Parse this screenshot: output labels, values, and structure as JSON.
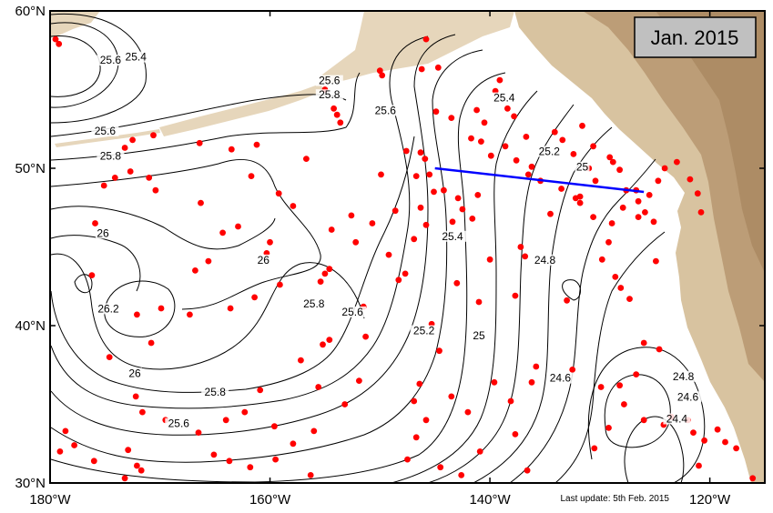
{
  "title": "Jan. 2015",
  "last_update": "Last update: 5th Feb. 2015",
  "axes": {
    "x_ticks": [
      {
        "value": -180,
        "label": "180°W"
      },
      {
        "value": -160,
        "label": "160°W"
      },
      {
        "value": -140,
        "label": "140°W"
      },
      {
        "value": -120,
        "label": "120°W"
      }
    ],
    "y_ticks": [
      {
        "value": 30,
        "label": "30°N"
      },
      {
        "value": 40,
        "label": "40°N"
      },
      {
        "value": 50,
        "label": "50°N"
      },
      {
        "value": 60,
        "label": "60°N"
      }
    ],
    "lon_range": [
      -180,
      -115
    ],
    "lat_range": [
      30,
      60
    ]
  },
  "colors": {
    "land": "#d8c3a0",
    "land_dark": "#b79770",
    "ocean": "#ffffff",
    "floats": "#ff0000",
    "section": "#0000ff",
    "contour": "#000000",
    "title_box": "#c0c0c0"
  },
  "contour_labels": [
    {
      "text": "25.6",
      "lon": -174.5,
      "lat": 56.7
    },
    {
      "text": "25.4",
      "lon": -172.2,
      "lat": 56.9
    },
    {
      "text": "25.6",
      "lon": -175.0,
      "lat": 52.2
    },
    {
      "text": "25.8",
      "lon": -174.5,
      "lat": 50.6
    },
    {
      "text": "25.6",
      "lon": -154.6,
      "lat": 55.4
    },
    {
      "text": "25.8",
      "lon": -154.6,
      "lat": 54.5
    },
    {
      "text": "25.6",
      "lon": -149.5,
      "lat": 53.5
    },
    {
      "text": "25.4",
      "lon": -138.7,
      "lat": 54.3
    },
    {
      "text": "25.2",
      "lon": -134.6,
      "lat": 50.9
    },
    {
      "text": "25",
      "lon": -131.6,
      "lat": 49.9
    },
    {
      "text": "26",
      "lon": -175.2,
      "lat": 45.7
    },
    {
      "text": "26",
      "lon": -160.6,
      "lat": 44.0
    },
    {
      "text": "26.2",
      "lon": -174.7,
      "lat": 40.9
    },
    {
      "text": "26",
      "lon": -172.3,
      "lat": 36.8
    },
    {
      "text": "25.8",
      "lon": -165.0,
      "lat": 35.6
    },
    {
      "text": "25.6",
      "lon": -168.3,
      "lat": 33.6
    },
    {
      "text": "25.8",
      "lon": -156.0,
      "lat": 41.2
    },
    {
      "text": "25.6",
      "lon": -152.5,
      "lat": 40.7
    },
    {
      "text": "25.4",
      "lon": -143.4,
      "lat": 45.5
    },
    {
      "text": "25.2",
      "lon": -146.0,
      "lat": 39.5
    },
    {
      "text": "25",
      "lon": -141.0,
      "lat": 39.2
    },
    {
      "text": "24.8",
      "lon": -135.0,
      "lat": 44.0
    },
    {
      "text": "24.6",
      "lon": -133.6,
      "lat": 36.5
    },
    {
      "text": "24.8",
      "lon": -122.4,
      "lat": 36.6
    },
    {
      "text": "24.6",
      "lon": -122.0,
      "lat": 35.3
    },
    {
      "text": "24.4",
      "lon": -123.0,
      "lat": 33.9
    }
  ],
  "section_line": {
    "start": {
      "lon": -145.0,
      "lat": 50.0
    },
    "end": {
      "lon": -126.0,
      "lat": 48.5
    }
  },
  "floats": [
    [
      -179.5,
      58.2
    ],
    [
      -179.2,
      57.9
    ],
    [
      -155.0,
      55.0
    ],
    [
      -154.2,
      53.8
    ],
    [
      -153.9,
      53.4
    ],
    [
      -153.6,
      52.9
    ],
    [
      -150.0,
      56.2
    ],
    [
      -149.8,
      55.9
    ],
    [
      -146.2,
      56.3
    ],
    [
      -145.8,
      58.2
    ],
    [
      -144.7,
      56.4
    ],
    [
      -144.9,
      53.6
    ],
    [
      -143.5,
      53.2
    ],
    [
      -141.2,
      53.7
    ],
    [
      -140.5,
      52.9
    ],
    [
      -139.5,
      54.9
    ],
    [
      -139.1,
      55.6
    ],
    [
      -138.4,
      53.8
    ],
    [
      -137.8,
      53.3
    ],
    [
      -141.7,
      51.9
    ],
    [
      -140.8,
      51.7
    ],
    [
      -139.9,
      50.8
    ],
    [
      -138.6,
      51.4
    ],
    [
      -137.6,
      50.5
    ],
    [
      -136.2,
      50.1
    ],
    [
      -133.4,
      51.8
    ],
    [
      -132.4,
      50.9
    ],
    [
      -131.0,
      50.0
    ],
    [
      -130.4,
      49.2
    ],
    [
      -129.1,
      50.7
    ],
    [
      -128.2,
      49.9
    ],
    [
      -127.6,
      48.6
    ],
    [
      -126.5,
      47.9
    ],
    [
      -125.9,
      47.2
    ],
    [
      -125.1,
      46.6
    ],
    [
      -124.9,
      44.1
    ],
    [
      -129.2,
      45.3
    ],
    [
      -129.8,
      44.2
    ],
    [
      -128.6,
      43.1
    ],
    [
      -128.1,
      42.4
    ],
    [
      -133.0,
      41.6
    ],
    [
      -127.3,
      41.7
    ],
    [
      -126.0,
      38.9
    ],
    [
      -124.6,
      38.5
    ],
    [
      -126.7,
      36.9
    ],
    [
      -128.2,
      36.2
    ],
    [
      -129.9,
      36.1
    ],
    [
      -132.5,
      37.2
    ],
    [
      -135.8,
      37.4
    ],
    [
      -136.2,
      36.4
    ],
    [
      -126.0,
      34.0
    ],
    [
      -124.2,
      33.7
    ],
    [
      -123.5,
      34.2
    ],
    [
      -122.0,
      34.0
    ],
    [
      -121.5,
      33.2
    ],
    [
      -120.5,
      32.7
    ],
    [
      -119.3,
      33.4
    ],
    [
      -118.6,
      32.6
    ],
    [
      -117.6,
      32.2
    ],
    [
      -116.1,
      30.3
    ],
    [
      -121.0,
      31.1
    ],
    [
      -127.8,
      35.0
    ],
    [
      -129.2,
      33.5
    ],
    [
      -130.5,
      32.2
    ],
    [
      -145.5,
      49.6
    ],
    [
      -145.1,
      48.5
    ],
    [
      -146.3,
      47.5
    ],
    [
      -145.8,
      46.4
    ],
    [
      -146.9,
      45.5
    ],
    [
      -147.7,
      43.3
    ],
    [
      -145.3,
      40.1
    ],
    [
      -144.6,
      38.4
    ],
    [
      -146.4,
      36.3
    ],
    [
      -146.9,
      35.2
    ],
    [
      -145.8,
      34.0
    ],
    [
      -146.7,
      32.9
    ],
    [
      -147.5,
      31.5
    ],
    [
      -144.5,
      31.0
    ],
    [
      -142.6,
      30.5
    ],
    [
      -140.9,
      32.0
    ],
    [
      -142.0,
      34.5
    ],
    [
      -143.5,
      35.5
    ],
    [
      -139.6,
      36.4
    ],
    [
      -138.1,
      35.2
    ],
    [
      -137.7,
      33.1
    ],
    [
      -136.6,
      30.8
    ],
    [
      -141.0,
      41.5
    ],
    [
      -143.0,
      42.7
    ],
    [
      -140.0,
      44.2
    ],
    [
      -137.2,
      45.0
    ],
    [
      -136.8,
      44.4
    ],
    [
      -137.7,
      41.9
    ],
    [
      -173.2,
      51.3
    ],
    [
      -172.5,
      51.8
    ],
    [
      -170.6,
      52.1
    ],
    [
      -171.0,
      49.4
    ],
    [
      -174.1,
      49.4
    ],
    [
      -175.1,
      48.9
    ],
    [
      -170.4,
      48.6
    ],
    [
      -166.3,
      47.8
    ],
    [
      -164.3,
      45.9
    ],
    [
      -162.9,
      46.3
    ],
    [
      -165.6,
      44.1
    ],
    [
      -166.8,
      43.5
    ],
    [
      -160.0,
      45.3
    ],
    [
      -160.3,
      44.6
    ],
    [
      -159.1,
      42.6
    ],
    [
      -161.4,
      41.8
    ],
    [
      -163.6,
      41.1
    ],
    [
      -167.3,
      40.7
    ],
    [
      -169.9,
      41.1
    ],
    [
      -172.1,
      40.7
    ],
    [
      -170.8,
      38.9
    ],
    [
      -174.6,
      38.0
    ],
    [
      -176.2,
      43.2
    ],
    [
      -175.9,
      46.5
    ],
    [
      -172.2,
      35.5
    ],
    [
      -171.6,
      34.5
    ],
    [
      -169.5,
      34.0
    ],
    [
      -166.5,
      33.2
    ],
    [
      -164.0,
      34.0
    ],
    [
      -162.3,
      34.5
    ],
    [
      -160.9,
      35.9
    ],
    [
      -159.6,
      33.6
    ],
    [
      -157.9,
      32.5
    ],
    [
      -159.5,
      31.5
    ],
    [
      -161.8,
      31.0
    ],
    [
      -165.1,
      31.8
    ],
    [
      -172.9,
      32.1
    ],
    [
      -172.1,
      31.1
    ],
    [
      -171.7,
      30.8
    ],
    [
      -173.2,
      30.3
    ],
    [
      -177.8,
      32.4
    ],
    [
      -178.6,
      33.3
    ],
    [
      -179.1,
      32.0
    ],
    [
      -176.0,
      31.4
    ],
    [
      -163.7,
      31.4
    ],
    [
      -156.3,
      30.5
    ],
    [
      -156.0,
      33.3
    ],
    [
      -153.2,
      35.0
    ],
    [
      -155.6,
      36.1
    ],
    [
      -157.2,
      37.8
    ],
    [
      -155.2,
      38.8
    ],
    [
      -154.6,
      39.1
    ],
    [
      -151.9,
      36.5
    ],
    [
      -151.3,
      39.3
    ],
    [
      -155.4,
      42.8
    ],
    [
      -155.0,
      43.3
    ],
    [
      -154.6,
      43.6
    ],
    [
      -154.4,
      46.1
    ],
    [
      -152.6,
      47.0
    ],
    [
      -157.9,
      47.6
    ],
    [
      -159.2,
      48.4
    ],
    [
      -161.7,
      49.5
    ],
    [
      -161.2,
      51.5
    ],
    [
      -163.5,
      51.2
    ],
    [
      -166.4,
      51.6
    ],
    [
      -172.7,
      49.8
    ],
    [
      -156.7,
      50.6
    ],
    [
      -149.9,
      49.6
    ],
    [
      -148.6,
      47.3
    ],
    [
      -150.7,
      46.5
    ],
    [
      -148.3,
      42.9
    ],
    [
      -149.2,
      44.5
    ],
    [
      -152.2,
      45.3
    ],
    [
      -151.5,
      41.2
    ],
    [
      -141.1,
      48.3
    ],
    [
      -141.6,
      46.8
    ],
    [
      -134.5,
      47.1
    ],
    [
      -132.2,
      48.1
    ],
    [
      -131.8,
      47.8
    ],
    [
      -130.6,
      46.9
    ],
    [
      -128.9,
      46.5
    ],
    [
      -136.7,
      52.0
    ],
    [
      -134.1,
      52.3
    ],
    [
      -131.6,
      52.7
    ],
    [
      -130.6,
      51.4
    ],
    [
      -128.8,
      50.4
    ],
    [
      -127.9,
      47.5
    ],
    [
      -126.5,
      46.9
    ],
    [
      -120.8,
      47.2
    ],
    [
      -121.1,
      48.4
    ],
    [
      -121.8,
      49.3
    ],
    [
      -123.0,
      50.4
    ],
    [
      -124.1,
      50.0
    ],
    [
      -124.7,
      49.2
    ],
    [
      -125.5,
      48.3
    ],
    [
      -126.7,
      48.6
    ],
    [
      -131.8,
      48.2
    ],
    [
      -133.5,
      48.7
    ],
    [
      -135.4,
      49.2
    ],
    [
      -136.5,
      49.6
    ],
    [
      -147.6,
      51.1
    ],
    [
      -146.3,
      51.0
    ],
    [
      -145.9,
      50.6
    ],
    [
      -146.7,
      49.5
    ],
    [
      -144.2,
      48.6
    ],
    [
      -142.9,
      48.1
    ],
    [
      -142.5,
      47.4
    ],
    [
      -143.4,
      46.6
    ]
  ]
}
